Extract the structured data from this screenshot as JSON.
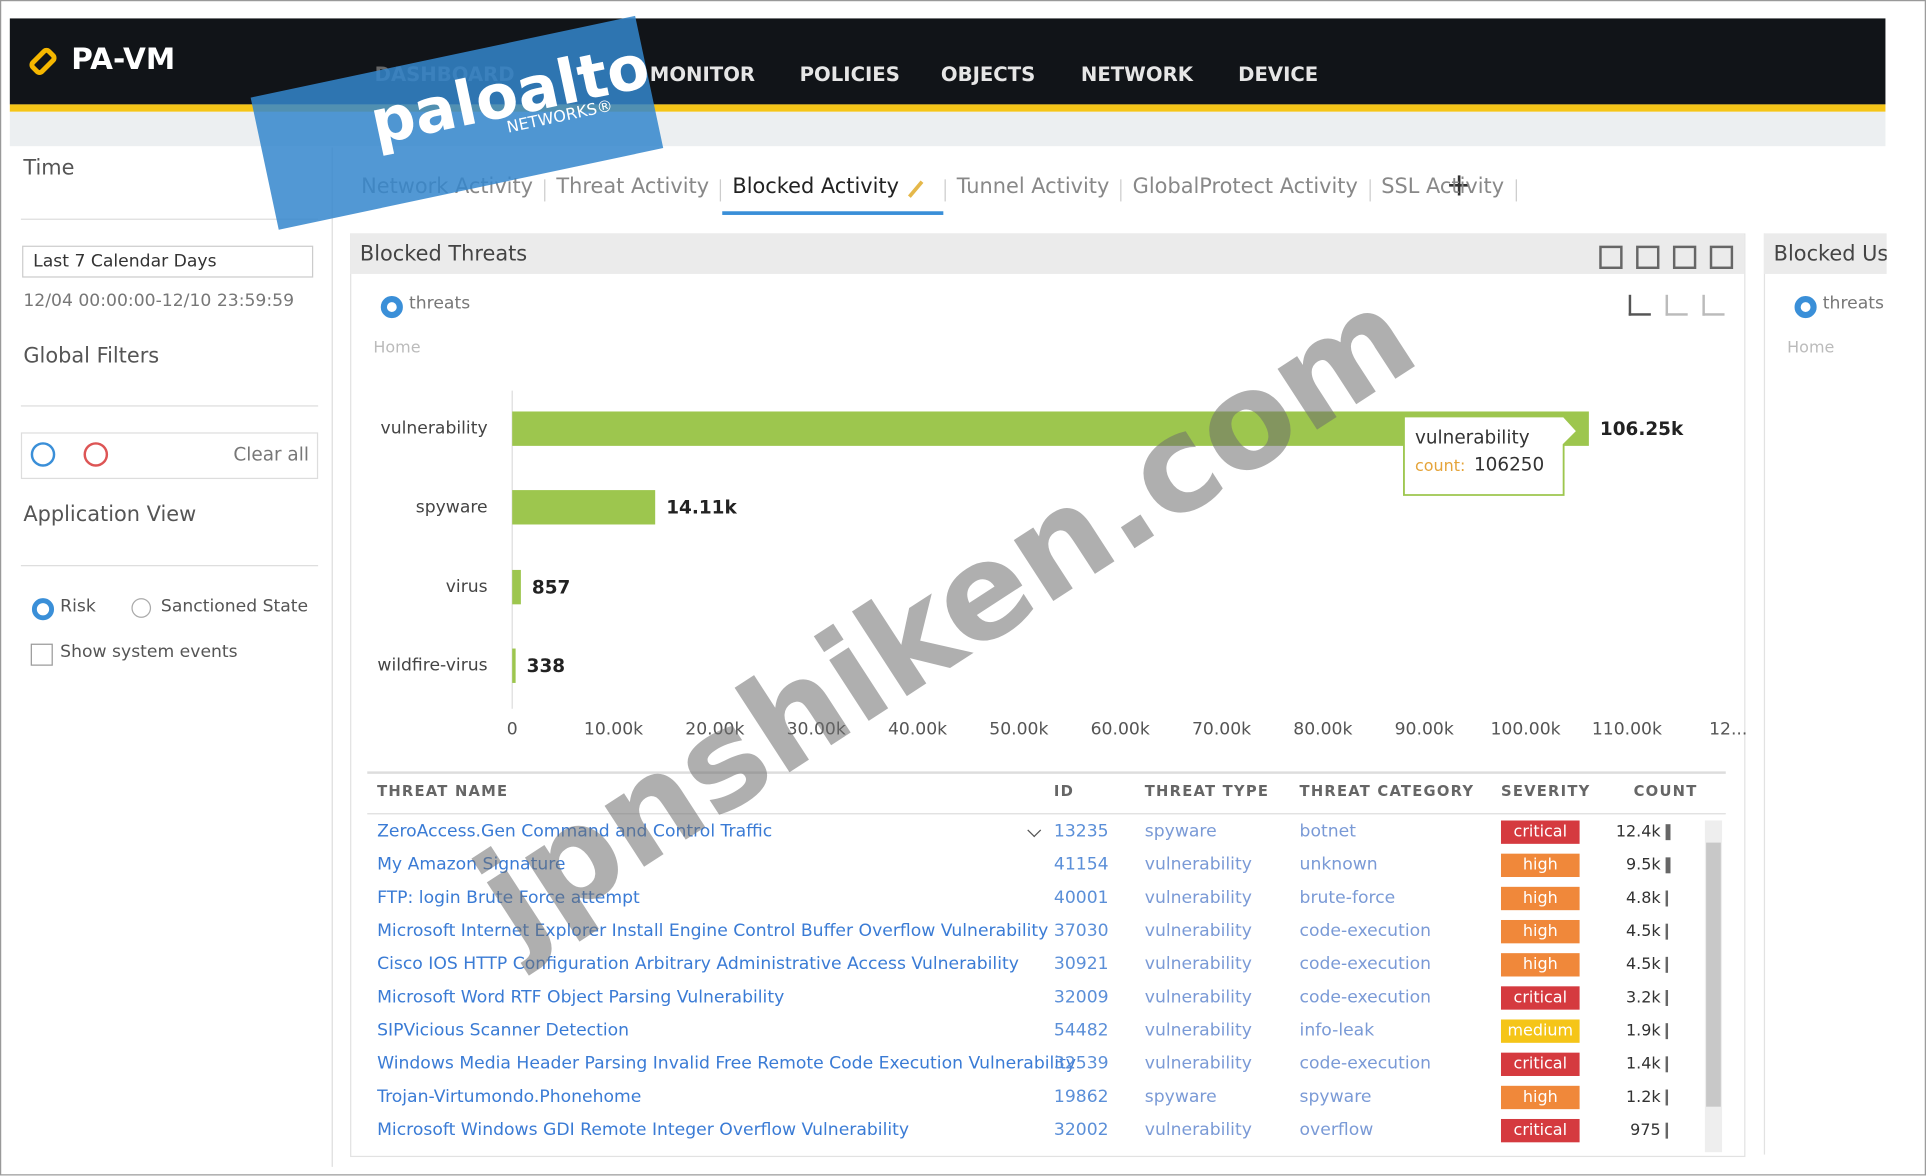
{
  "header": {
    "product": "PA-VM",
    "nav": [
      "DASHBOARD",
      "MONITOR",
      "POLICIES",
      "OBJECTS",
      "NETWORK",
      "DEVICE"
    ]
  },
  "sidebar": {
    "time_label": "Time",
    "time_range": "Last 7 Calendar Days",
    "date_range": "12/04 00:00:00-12/10 23:59:59",
    "global_filters": "Global Filters",
    "clear_all": "Clear all",
    "application_view": "Application View",
    "options": [
      "Risk",
      "Sanctioned State"
    ],
    "checkbox": "Show system events"
  },
  "tabs": [
    "Network Activity",
    "Threat Activity",
    "Blocked Activity",
    "Tunnel Activity",
    "GlobalProtect Activity",
    "SSL Activity"
  ],
  "widget": {
    "title": "Blocked Threats",
    "radio": "threats",
    "breadcrumb": "Home",
    "tooltip_count_label": "count:"
  },
  "chart_data": {
    "type": "bar",
    "orientation": "horizontal",
    "color": "#9dc64e",
    "categories": [
      "vulnerability",
      "spyware",
      "virus",
      "wildfire-virus"
    ],
    "values": [
      106250,
      14110,
      857,
      338
    ],
    "value_labels": [
      "106.25k",
      "14.11k",
      "857",
      "338"
    ],
    "xlim": [
      0,
      120000
    ],
    "xticks": [
      0,
      {
        "value": 10000,
        "label": "10.00k"
      },
      {
        "value": 20000,
        "label": "20.00k"
      },
      {
        "value": 30000,
        "label": "30.00k"
      },
      {
        "value": 40000,
        "label": "40.00k"
      },
      {
        "value": 50000,
        "label": "50.00k"
      },
      {
        "value": 60000,
        "label": "60.00k"
      },
      {
        "value": 70000,
        "label": "70.00k"
      },
      {
        "value": 80000,
        "label": "80.00k"
      },
      {
        "value": 90000,
        "label": "90.00k"
      },
      {
        "value": 100000,
        "label": "100.00k"
      },
      {
        "value": 110000,
        "label": "110.00k"
      },
      {
        "value": 120000,
        "label": "12..."
      }
    ]
  },
  "table": {
    "columns": [
      "THREAT NAME",
      "ID",
      "THREAT TYPE",
      "THREAT CATEGORY",
      "SEVERITY",
      "COUNT"
    ],
    "rows": [
      [
        "ZeroAccess.Gen Command and Control Traffic",
        "13235",
        "spyware",
        "botnet",
        "critical",
        "12.4k"
      ],
      [
        "My Amazon Signature",
        "41154",
        "vulnerability",
        "unknown",
        "high",
        "9.5k"
      ],
      [
        "FTP: login Brute Force attempt",
        "40001",
        "vulnerability",
        "brute-force",
        "high",
        "4.8k"
      ],
      [
        "Microsoft Internet Explorer Install Engine Control Buffer Overflow Vulnerability",
        "37030",
        "vulnerability",
        "code-execution",
        "high",
        "4.5k"
      ],
      [
        "Cisco IOS HTTP Configuration Arbitrary Administrative Access Vulnerability",
        "30921",
        "vulnerability",
        "code-execution",
        "high",
        "4.5k"
      ],
      [
        "Microsoft Word RTF Object Parsing Vulnerability",
        "32009",
        "vulnerability",
        "code-execution",
        "critical",
        "3.2k"
      ],
      [
        "SIPVicious Scanner Detection",
        "54482",
        "vulnerability",
        "info-leak",
        "medium",
        "1.9k"
      ],
      [
        "Windows Media Header Parsing Invalid Free Remote Code Execution Vulnerability",
        "32539",
        "vulnerability",
        "code-execution",
        "critical",
        "1.4k"
      ],
      [
        "Trojan-Virtumondo.Phonehome",
        "19862",
        "spyware",
        "spyware",
        "high",
        "1.2k"
      ],
      [
        "Microsoft Windows GDI Remote Integer Overflow Vulnerability",
        "32002",
        "vulnerability",
        "overflow",
        "critical",
        "975"
      ]
    ]
  },
  "side_widget": {
    "title": "Blocked Use",
    "radio": "threats",
    "breadcrumb": "Home"
  },
  "watermark": {
    "brand": "paloalto",
    "brand_sub": "NETWORKS®",
    "site": "jpnshiken.com"
  }
}
